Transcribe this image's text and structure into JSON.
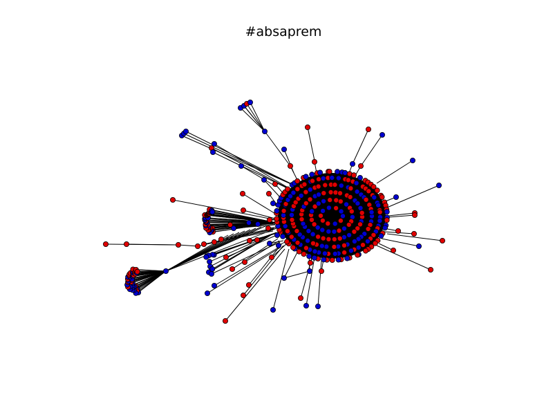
{
  "figure": {
    "title": "#absaprem"
  },
  "colors": {
    "node_red": "#e00000",
    "node_blue": "#0000d0",
    "edge": "#000000",
    "outline": "#000000",
    "background": "#ffffff"
  },
  "legend": {
    "node_colors": [
      "red",
      "blue"
    ]
  }
}
